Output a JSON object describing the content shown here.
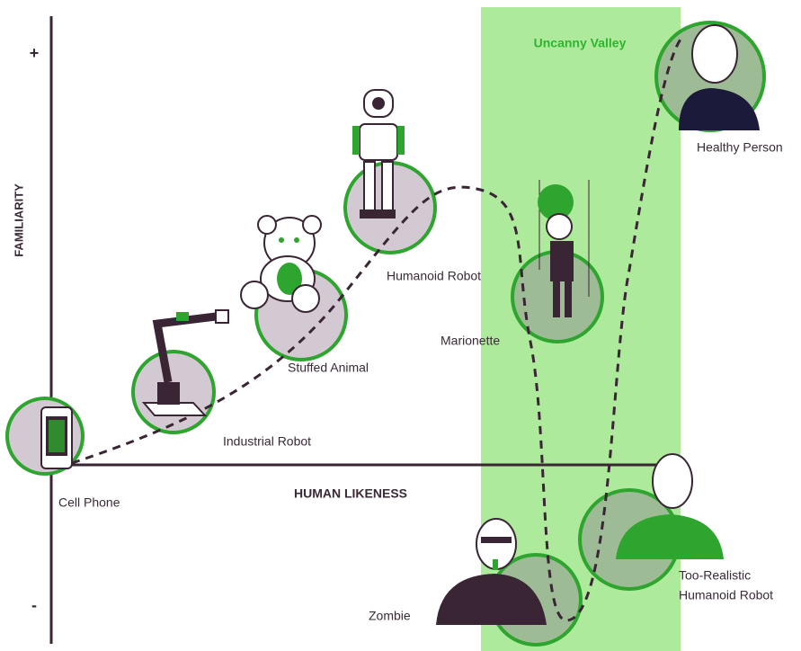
{
  "axes": {
    "y_label": "FAMILIARITY",
    "x_label": "HUMAN LIKENESS",
    "y_plus": "+",
    "y_minus": "-"
  },
  "region": {
    "label": "Uncanny Valley"
  },
  "nodes": [
    {
      "label": "Cell Phone"
    },
    {
      "label": "Industrial Robot"
    },
    {
      "label": "Stuffed Animal"
    },
    {
      "label": "Humanoid Robot"
    },
    {
      "label": "Marionette"
    },
    {
      "label": "Healthy Person"
    },
    {
      "label": "Zombie"
    },
    {
      "label_lines": [
        "Too-Realistic",
        "Humanoid Robot"
      ]
    }
  ]
}
